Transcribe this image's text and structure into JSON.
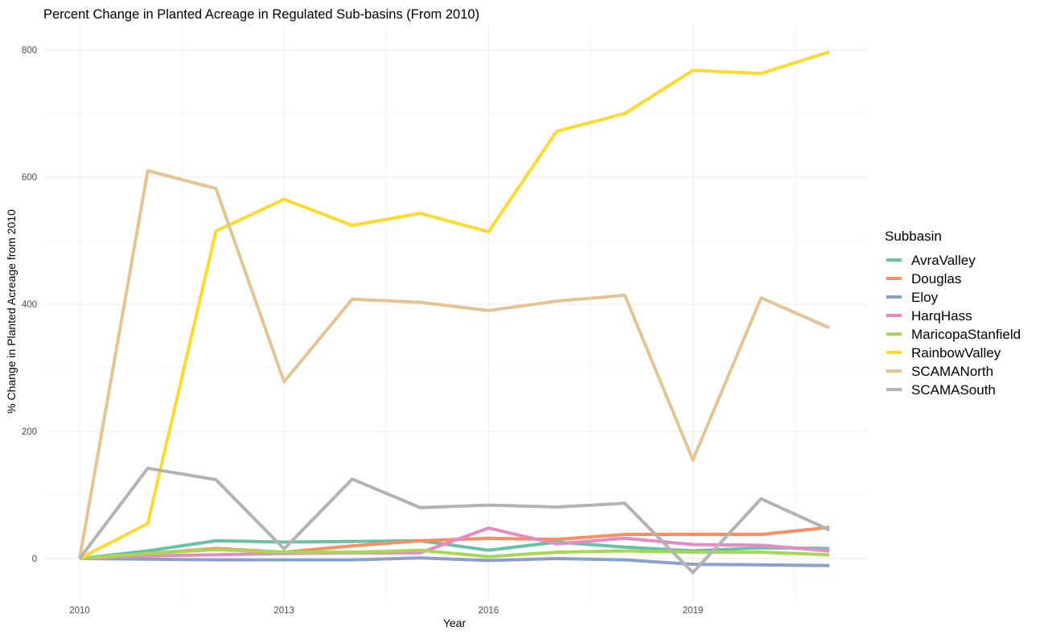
{
  "chart_data": {
    "type": "line",
    "title": "Percent Change in Planted Acreage in Regulated Sub-basins (From 2010)",
    "xlabel": "Year",
    "ylabel": "% Change in Planted Acreage from 2010",
    "x": [
      2010,
      2011,
      2012,
      2013,
      2014,
      2015,
      2016,
      2017,
      2018,
      2019,
      2020,
      2021
    ],
    "xlim": [
      2010,
      2021
    ],
    "ylim": [
      -25,
      795
    ],
    "x_ticks": [
      "2010",
      "2013",
      "2016",
      "2019"
    ],
    "y_ticks": [
      "0",
      "200",
      "400",
      "600",
      "800"
    ],
    "grid": true,
    "legend": {
      "title": "Subbasin",
      "position": "right"
    },
    "series": [
      {
        "name": "AvraValley",
        "color": "#66c2a5",
        "values": [
          0,
          12,
          28,
          26,
          27,
          28,
          13,
          26,
          18,
          12,
          17,
          16
        ]
      },
      {
        "name": "Douglas",
        "color": "#fc8d62",
        "values": [
          0,
          8,
          16,
          10,
          20,
          28,
          32,
          30,
          38,
          38,
          38,
          49
        ]
      },
      {
        "name": "Eloy",
        "color": "#8da0cb",
        "values": [
          0,
          -1,
          -2,
          -2,
          -2,
          1,
          -3,
          0,
          -2,
          -9,
          -10,
          -11
        ]
      },
      {
        "name": "HarqHass",
        "color": "#e78ac3",
        "values": [
          0,
          4,
          6,
          8,
          9,
          9,
          48,
          23,
          32,
          22,
          21,
          12
        ]
      },
      {
        "name": "MaricopaStanfield",
        "color": "#a6d854",
        "values": [
          0,
          8,
          14,
          10,
          10,
          13,
          3,
          10,
          12,
          10,
          10,
          6
        ]
      },
      {
        "name": "RainbowValley",
        "color": "#ffd92f",
        "values": [
          0,
          55,
          515,
          565,
          524,
          543,
          514,
          672,
          700,
          768,
          763,
          797
        ]
      },
      {
        "name": "SCAMANorth",
        "color": "#e5c494",
        "values": [
          0,
          610,
          582,
          278,
          408,
          403,
          390,
          405,
          414,
          155,
          410,
          363
        ]
      },
      {
        "name": "SCAMASouth",
        "color": "#b3b3b3",
        "values": [
          0,
          142,
          124,
          15,
          125,
          80,
          84,
          81,
          87,
          -22,
          94,
          45
        ]
      }
    ]
  }
}
